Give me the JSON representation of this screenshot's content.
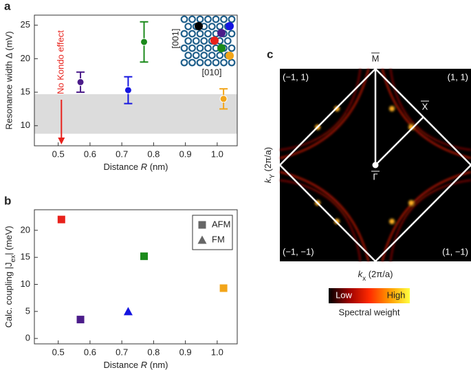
{
  "chart_data": [
    {
      "type": "scatter",
      "panel_label": "a",
      "xlabel": [
        "Distance ",
        "R",
        " (nm)"
      ],
      "ylabel": "Resonance width Δ (mV)",
      "xlim": [
        0.425,
        1.063
      ],
      "ylim": [
        7,
        26.5
      ],
      "xticks": [
        0.5,
        0.6,
        0.7,
        0.8,
        0.9,
        {
          "value": 1,
          "label": "1.0"
        }
      ],
      "yticks": [
        10,
        15,
        20,
        25
      ],
      "band": [
        8.8,
        14.7
      ],
      "band_color": "#dcdcdc",
      "annotation": {
        "text": "No Kondo effect",
        "x": 0.51,
        "color": "#e8211b"
      },
      "inset_labels": [
        "[001]",
        "[010]"
      ],
      "series": [
        {
          "color": "#4b1c8a",
          "x": [
            0.57
          ],
          "values": [
            16.5
          ],
          "errors": [
            1.5
          ]
        },
        {
          "color": "#1515e0",
          "x": [
            0.72
          ],
          "values": [
            15.3
          ],
          "errors": [
            2
          ]
        },
        {
          "color": "#1a8a1a",
          "x": [
            0.77
          ],
          "values": [
            22.5
          ],
          "errors": [
            3
          ]
        },
        {
          "color": "#f2a51a",
          "x": [
            1.02
          ],
          "values": [
            14
          ],
          "errors": [
            1.5
          ]
        }
      ]
    },
    {
      "type": "scatter",
      "panel_label": "b",
      "xlabel": [
        "Distance ",
        "R",
        " (nm)"
      ],
      "ylabel": [
        "Calc. coupling |J",
        "ex",
        "| (meV)"
      ],
      "xlim": [
        0.425,
        1.063
      ],
      "ylim": [
        -1,
        23.8
      ],
      "xticks": [
        0.5,
        0.6,
        0.7,
        0.8,
        0.9,
        {
          "value": 1,
          "label": "1.0"
        }
      ],
      "yticks": [
        0,
        5,
        10,
        15,
        20
      ],
      "legend": "upper right",
      "legend_color": "#666666",
      "series": [
        {
          "name": "AFM",
          "marker": "square",
          "x": [
            0.51,
            0.57,
            0.77,
            1.02
          ],
          "values": [
            22,
            3.5,
            15.2,
            9.3
          ],
          "colors": [
            "#e8211b",
            "#4b1c8a",
            "#1a8a1a",
            "#f2a51a"
          ]
        },
        {
          "name": "FM",
          "marker": "triangle",
          "x": [
            0.72
          ],
          "values": [
            5
          ],
          "colors": [
            "#1515e0"
          ]
        }
      ]
    },
    {
      "type": "heatmap",
      "panel_label": "c",
      "xlabel": [
        "k",
        "x",
        " (2π/a)"
      ],
      "ylabel": [
        "k",
        "Y",
        " (2π/a)"
      ],
      "point_labels": [
        "M",
        "X",
        "Γ"
      ],
      "corner_labels": [
        "(−1, 1)",
        "(1, 1)",
        "(−1, −1)",
        "(1, −1)"
      ],
      "colorbar": {
        "low": "Low",
        "high": "High",
        "title": "Spectral weight",
        "colors": [
          "#000000",
          "#9a0000",
          "#ff2a00",
          "#ff9a00",
          "#ffff40"
        ]
      }
    }
  ]
}
